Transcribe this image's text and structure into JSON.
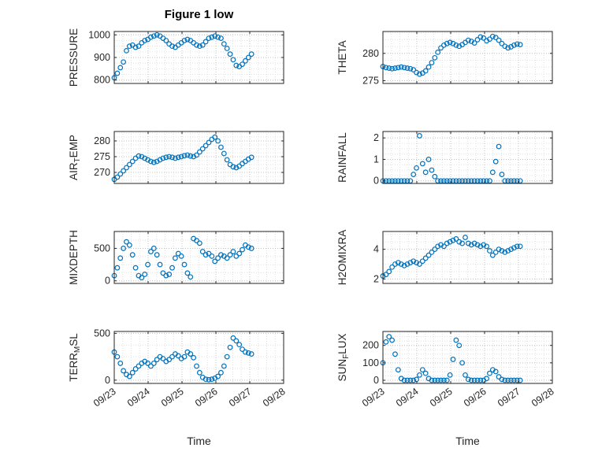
{
  "title": "Figure 1 low",
  "xlabel": "Time",
  "marker_color": "#0072BD",
  "axis_color": "#262626",
  "grid_major_color": "#c2c2c2",
  "grid_minor_color": "#e0e0e0",
  "xlim": [
    0,
    5
  ],
  "xticks": [
    0,
    1,
    2,
    3,
    4,
    5
  ],
  "xticklabels": [
    "09/23",
    "09/24",
    "09/25",
    "09/26",
    "09/27",
    "09/28"
  ],
  "time_days": [
    0,
    0.09,
    0.18,
    0.27,
    0.36,
    0.45,
    0.54,
    0.63,
    0.72,
    0.81,
    0.9,
    0.99,
    1.08,
    1.17,
    1.26,
    1.35,
    1.44,
    1.53,
    1.62,
    1.71,
    1.8,
    1.89,
    1.98,
    2.07,
    2.16,
    2.25,
    2.34,
    2.43,
    2.52,
    2.61,
    2.7,
    2.79,
    2.88,
    2.97,
    3.06,
    3.15,
    3.24,
    3.33,
    3.42,
    3.51,
    3.6,
    3.69,
    3.78,
    3.87,
    3.96,
    4.05
  ],
  "chart_data": [
    {
      "type": "scatter",
      "name": "pressure",
      "ylabel": "PRESSURE",
      "ylim": [
        785,
        1015
      ],
      "yticks": [
        800,
        900,
        1000
      ],
      "values": [
        810,
        830,
        855,
        880,
        930,
        950,
        955,
        945,
        950,
        965,
        975,
        980,
        990,
        995,
        1000,
        995,
        985,
        975,
        960,
        950,
        945,
        955,
        965,
        975,
        980,
        975,
        965,
        955,
        950,
        955,
        970,
        985,
        990,
        995,
        990,
        985,
        960,
        940,
        915,
        890,
        865,
        860,
        870,
        885,
        900,
        915
      ]
    },
    {
      "type": "scatter",
      "name": "theta",
      "ylabel": "THETA",
      "ylim": [
        274.5,
        284
      ],
      "yticks": [
        275,
        280
      ],
      "values": [
        277.6,
        277.4,
        277.3,
        277.2,
        277.3,
        277.4,
        277.5,
        277.4,
        277.3,
        277.2,
        277.0,
        276.5,
        276.2,
        276.4,
        276.8,
        277.5,
        278.3,
        279.2,
        280.2,
        281.0,
        281.5,
        281.8,
        282.0,
        281.8,
        281.5,
        281.3,
        281.6,
        282.0,
        282.4,
        282.2,
        281.9,
        282.5,
        283.0,
        282.8,
        282.3,
        282.6,
        283.1,
        282.9,
        282.4,
        281.8,
        281.3,
        281.0,
        281.2,
        281.5,
        281.7,
        281.6
      ]
    },
    {
      "type": "scatter",
      "name": "airtemp",
      "ylabel": "AIR_TEMP",
      "ylim": [
        266.5,
        283
      ],
      "yticks": [
        270,
        275,
        280
      ],
      "values": [
        267.8,
        268.5,
        269.5,
        270.5,
        271.5,
        272.5,
        273.5,
        274.5,
        275.2,
        275.0,
        274.5,
        274.0,
        273.5,
        273.2,
        273.5,
        274.0,
        274.5,
        274.8,
        275.0,
        274.8,
        274.5,
        274.8,
        275.0,
        275.3,
        275.5,
        275.2,
        275.0,
        275.5,
        276.5,
        277.5,
        278.5,
        279.5,
        280.5,
        281.2,
        280.0,
        278.0,
        276.0,
        274.0,
        272.5,
        271.8,
        271.5,
        272.0,
        272.8,
        273.5,
        274.2,
        274.8
      ]
    },
    {
      "type": "scatter",
      "name": "rainfall",
      "ylabel": "RAINFALL",
      "ylim": [
        -0.12,
        2.3
      ],
      "yticks": [
        0,
        1,
        2
      ],
      "values": [
        0,
        0,
        0,
        0,
        0,
        0,
        0,
        0,
        0,
        0,
        0.3,
        0.6,
        2.1,
        0.8,
        0.4,
        1.0,
        0.5,
        0.2,
        0,
        0,
        0,
        0,
        0,
        0,
        0,
        0,
        0,
        0,
        0,
        0,
        0,
        0,
        0,
        0,
        0,
        0,
        0.4,
        0.9,
        1.6,
        0.3,
        0,
        0,
        0,
        0,
        0,
        0
      ]
    },
    {
      "type": "scatter",
      "name": "mixdepth",
      "ylabel": "MIXDEPTH",
      "ylim": [
        -40,
        760
      ],
      "yticks": [
        0,
        500
      ],
      "values": [
        80,
        200,
        350,
        500,
        600,
        550,
        400,
        200,
        80,
        50,
        100,
        250,
        450,
        500,
        400,
        250,
        120,
        80,
        100,
        200,
        350,
        420,
        380,
        250,
        120,
        60,
        650,
        620,
        580,
        450,
        400,
        420,
        380,
        300,
        350,
        400,
        380,
        350,
        400,
        450,
        380,
        420,
        480,
        550,
        520,
        500
      ]
    },
    {
      "type": "scatter",
      "name": "h2omixra",
      "ylabel": "H2OMIXRA",
      "ylim": [
        1.7,
        5.2
      ],
      "yticks": [
        2,
        4
      ],
      "values": [
        2.2,
        2.3,
        2.5,
        2.8,
        3.0,
        3.1,
        3.0,
        2.9,
        3.0,
        3.1,
        3.2,
        3.1,
        3.0,
        3.2,
        3.4,
        3.6,
        3.8,
        4.0,
        4.2,
        4.3,
        4.2,
        4.4,
        4.5,
        4.6,
        4.7,
        4.5,
        4.4,
        4.8,
        4.4,
        4.3,
        4.4,
        4.3,
        4.2,
        4.3,
        4.2,
        3.9,
        3.6,
        3.8,
        4.0,
        3.9,
        3.8,
        3.9,
        4.0,
        4.1,
        4.2,
        4.2
      ]
    },
    {
      "type": "scatter",
      "name": "terrmsl",
      "ylabel": "TERR_MSL",
      "ylim": [
        -35,
        520
      ],
      "yticks": [
        0,
        500
      ],
      "values": [
        300,
        250,
        180,
        100,
        60,
        40,
        80,
        120,
        150,
        180,
        200,
        180,
        150,
        180,
        220,
        250,
        230,
        200,
        220,
        250,
        280,
        260,
        230,
        250,
        300,
        280,
        240,
        150,
        80,
        30,
        10,
        5,
        10,
        20,
        40,
        80,
        150,
        250,
        350,
        450,
        420,
        380,
        330,
        300,
        290,
        280
      ]
    },
    {
      "type": "scatter",
      "name": "sunflux",
      "ylabel": "SUN_FLUX",
      "ylim": [
        -18,
        280
      ],
      "yticks": [
        0,
        100,
        200
      ],
      "values": [
        100,
        220,
        250,
        230,
        150,
        60,
        10,
        0,
        0,
        0,
        0,
        5,
        30,
        60,
        40,
        10,
        0,
        0,
        0,
        0,
        0,
        0,
        30,
        120,
        230,
        200,
        100,
        30,
        5,
        0,
        0,
        0,
        0,
        0,
        10,
        40,
        60,
        50,
        20,
        5,
        0,
        0,
        0,
        0,
        0,
        0
      ]
    }
  ]
}
